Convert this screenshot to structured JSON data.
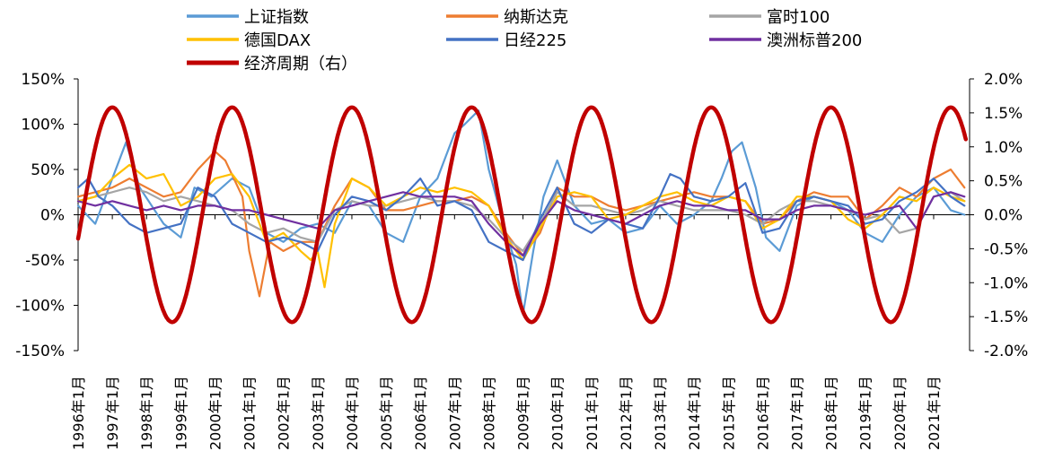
{
  "chart_data": {
    "type": "line",
    "title": "",
    "x_start": "1996-01",
    "x_end": "2021-12",
    "x_tick_labels": [
      "1996年1月",
      "1997年1月",
      "1998年1月",
      "1999年1月",
      "2000年1月",
      "2001年1月",
      "2002年1月",
      "2003年1月",
      "2004年1月",
      "2005年1月",
      "2006年1月",
      "2007年1月",
      "2008年1月",
      "2009年1月",
      "2010年1月",
      "2011年1月",
      "2012年1月",
      "2013年1月",
      "2014年1月",
      "2015年1月",
      "2016年1月",
      "2017年1月",
      "2018年1月",
      "2019年1月",
      "2020年1月",
      "2021年1月"
    ],
    "y_left": {
      "min": -150,
      "max": 150,
      "step": 50,
      "tick_labels": [
        "150%",
        "100%",
        "50%",
        "0%",
        "-50%",
        "-100%",
        "-150%"
      ]
    },
    "y_right": {
      "min": -2.0,
      "max": 2.0,
      "step": 0.5,
      "tick_labels": [
        "2.0%",
        "1.5%",
        "1.0%",
        "0.5%",
        "0.0%",
        "-0.5%",
        "-1.0%",
        "-1.5%",
        "-2.0%"
      ]
    },
    "legend_position": "top",
    "series": [
      {
        "name": "上证指数",
        "color": "#5B9BD5",
        "axis": "left",
        "x": [
          1996.0,
          1996.5,
          1997.0,
          1997.4,
          1997.8,
          1998.5,
          1999.0,
          1999.4,
          1999.9,
          2000.5,
          2001.0,
          2001.5,
          2002.0,
          2002.5,
          2003.0,
          2003.5,
          2004.0,
          2004.5,
          2005.0,
          2005.5,
          2006.0,
          2006.5,
          2007.0,
          2007.3,
          2007.7,
          2008.0,
          2008.5,
          2008.8,
          2009.0,
          2009.3,
          2009.6,
          2010.0,
          2010.5,
          2011.0,
          2011.5,
          2012.0,
          2012.5,
          2013.0,
          2013.5,
          2014.0,
          2014.5,
          2014.8,
          2015.1,
          2015.4,
          2015.8,
          2016.1,
          2016.5,
          2017.0,
          2017.5,
          2018.0,
          2018.5,
          2019.0,
          2019.5,
          2020.0,
          2020.5,
          2021.0,
          2021.5,
          2021.9
        ],
        "y": [
          10,
          -10,
          40,
          80,
          30,
          -10,
          -25,
          30,
          20,
          40,
          30,
          -20,
          -30,
          -15,
          -10,
          -20,
          15,
          10,
          -20,
          -30,
          20,
          40,
          90,
          100,
          115,
          50,
          -20,
          -55,
          -110,
          -40,
          20,
          60,
          10,
          -10,
          -5,
          -20,
          -15,
          10,
          -10,
          0,
          15,
          40,
          70,
          80,
          30,
          -25,
          -40,
          10,
          20,
          15,
          5,
          -20,
          -30,
          0,
          20,
          30,
          5,
          0
        ]
      },
      {
        "name": "纳斯达克",
        "color": "#ED7D31",
        "axis": "left",
        "x": [
          1996.0,
          1996.5,
          1997.0,
          1997.5,
          1998.0,
          1998.5,
          1999.0,
          1999.5,
          2000.0,
          2000.3,
          2000.8,
          2001.0,
          2001.3,
          2001.6,
          2002.0,
          2002.5,
          2003.0,
          2003.5,
          2004.0,
          2004.5,
          2005.0,
          2005.5,
          2006.0,
          2006.5,
          2007.0,
          2007.5,
          2008.0,
          2008.5,
          2009.0,
          2009.5,
          2010.0,
          2010.5,
          2011.0,
          2011.5,
          2012.0,
          2012.5,
          2013.0,
          2013.5,
          2014.0,
          2014.5,
          2015.0,
          2015.5,
          2016.0,
          2016.5,
          2017.0,
          2017.5,
          2018.0,
          2018.5,
          2019.0,
          2019.5,
          2020.0,
          2020.5,
          2021.0,
          2021.5,
          2021.9
        ],
        "y": [
          20,
          25,
          30,
          40,
          30,
          20,
          25,
          50,
          70,
          60,
          20,
          -40,
          -90,
          -30,
          -40,
          -30,
          -30,
          10,
          40,
          30,
          5,
          5,
          10,
          15,
          15,
          20,
          10,
          -20,
          -45,
          -20,
          30,
          20,
          20,
          10,
          5,
          10,
          15,
          20,
          25,
          20,
          20,
          15,
          -10,
          -5,
          15,
          25,
          20,
          20,
          -5,
          10,
          30,
          20,
          40,
          50,
          30
        ]
      },
      {
        "name": "富时100",
        "color": "#A5A5A5",
        "axis": "left",
        "x": [
          1996.0,
          1996.5,
          1997.0,
          1997.5,
          1998.0,
          1998.5,
          1999.0,
          1999.5,
          2000.0,
          2000.5,
          2001.0,
          2001.5,
          2002.0,
          2002.5,
          2003.0,
          2003.5,
          2004.0,
          2004.5,
          2005.0,
          2005.5,
          2006.0,
          2006.5,
          2007.0,
          2007.5,
          2008.0,
          2008.5,
          2009.0,
          2009.5,
          2010.0,
          2010.5,
          2011.0,
          2011.5,
          2012.0,
          2012.5,
          2013.0,
          2013.5,
          2014.0,
          2014.5,
          2015.0,
          2015.5,
          2016.0,
          2016.5,
          2017.0,
          2017.5,
          2018.0,
          2018.5,
          2019.0,
          2019.5,
          2020.0,
          2020.5,
          2021.0,
          2021.5,
          2021.9
        ],
        "y": [
          15,
          20,
          25,
          30,
          25,
          15,
          20,
          15,
          10,
          5,
          -10,
          -20,
          -15,
          -25,
          -30,
          5,
          15,
          10,
          10,
          15,
          20,
          15,
          15,
          10,
          -5,
          -25,
          -40,
          -10,
          25,
          10,
          10,
          5,
          0,
          5,
          15,
          10,
          5,
          5,
          5,
          0,
          -10,
          5,
          15,
          15,
          10,
          5,
          -5,
          0,
          -20,
          -15,
          20,
          25,
          15
        ]
      },
      {
        "name": "德国DAX",
        "color": "#FFC000",
        "axis": "left",
        "x": [
          1996.0,
          1996.5,
          1997.0,
          1997.5,
          1998.0,
          1998.5,
          1999.0,
          1999.5,
          2000.0,
          2000.5,
          2001.0,
          2001.5,
          2002.0,
          2002.5,
          2002.8,
          2003.0,
          2003.2,
          2003.5,
          2004.0,
          2004.5,
          2005.0,
          2005.5,
          2006.0,
          2006.5,
          2007.0,
          2007.5,
          2008.0,
          2008.5,
          2009.0,
          2009.5,
          2010.0,
          2010.5,
          2011.0,
          2011.5,
          2012.0,
          2012.5,
          2013.0,
          2013.5,
          2014.0,
          2014.5,
          2015.0,
          2015.5,
          2016.0,
          2016.5,
          2017.0,
          2017.5,
          2018.0,
          2018.5,
          2019.0,
          2019.5,
          2020.0,
          2020.5,
          2021.0,
          2021.5,
          2021.9
        ],
        "y": [
          15,
          20,
          40,
          55,
          40,
          45,
          10,
          20,
          40,
          45,
          20,
          -30,
          -20,
          -40,
          -50,
          -40,
          -80,
          -10,
          40,
          30,
          10,
          20,
          30,
          25,
          30,
          25,
          10,
          -25,
          -50,
          -15,
          20,
          25,
          20,
          -5,
          0,
          10,
          20,
          25,
          15,
          10,
          20,
          15,
          -15,
          -5,
          20,
          20,
          15,
          -5,
          -15,
          0,
          20,
          15,
          30,
          20,
          15
        ]
      },
      {
        "name": "日经225",
        "color": "#4472C4",
        "axis": "left",
        "x": [
          1996.0,
          1996.3,
          1996.6,
          1997.0,
          1997.5,
          1998.0,
          1998.5,
          1999.0,
          1999.5,
          2000.0,
          2000.5,
          2001.0,
          2001.5,
          2002.0,
          2002.5,
          2003.0,
          2003.5,
          2004.0,
          2004.5,
          2005.0,
          2005.5,
          2006.0,
          2006.5,
          2007.0,
          2007.5,
          2008.0,
          2008.5,
          2009.0,
          2009.5,
          2010.0,
          2010.5,
          2011.0,
          2011.5,
          2012.0,
          2012.5,
          2013.0,
          2013.3,
          2013.6,
          2014.0,
          2014.5,
          2015.0,
          2015.5,
          2016.0,
          2016.5,
          2017.0,
          2017.5,
          2018.0,
          2018.5,
          2019.0,
          2019.5,
          2020.0,
          2020.5,
          2021.0,
          2021.5,
          2021.9
        ],
        "y": [
          30,
          40,
          20,
          10,
          -10,
          -20,
          -15,
          -10,
          30,
          20,
          -10,
          -20,
          -30,
          -25,
          -30,
          -40,
          0,
          20,
          15,
          5,
          20,
          40,
          10,
          15,
          5,
          -30,
          -40,
          -50,
          -5,
          30,
          -10,
          -20,
          -5,
          -10,
          -15,
          20,
          45,
          40,
          20,
          15,
          20,
          35,
          -20,
          -15,
          15,
          20,
          15,
          10,
          -10,
          -5,
          15,
          25,
          40,
          20,
          10
        ]
      },
      {
        "name": "澳洲标普200",
        "color": "#7030A0",
        "axis": "left",
        "x": [
          1996.0,
          1996.5,
          1997.0,
          1997.5,
          1998.0,
          1998.5,
          1999.0,
          1999.5,
          2000.0,
          2000.5,
          2001.0,
          2001.5,
          2002.0,
          2002.5,
          2003.0,
          2003.5,
          2004.0,
          2004.5,
          2005.0,
          2005.5,
          2006.0,
          2006.5,
          2007.0,
          2007.5,
          2008.0,
          2008.5,
          2009.0,
          2009.5,
          2010.0,
          2010.5,
          2011.0,
          2011.5,
          2012.0,
          2012.5,
          2013.0,
          2013.5,
          2014.0,
          2014.5,
          2015.0,
          2015.5,
          2016.0,
          2016.5,
          2017.0,
          2017.5,
          2018.0,
          2018.5,
          2019.0,
          2019.5,
          2020.0,
          2020.5,
          2021.0,
          2021.5,
          2021.9
        ],
        "y": [
          15,
          10,
          15,
          10,
          5,
          10,
          5,
          10,
          10,
          5,
          5,
          0,
          -5,
          -10,
          -15,
          5,
          10,
          15,
          20,
          25,
          20,
          20,
          20,
          15,
          -10,
          -30,
          -45,
          -10,
          15,
          5,
          0,
          -5,
          -10,
          0,
          10,
          15,
          10,
          10,
          5,
          5,
          -5,
          -5,
          5,
          10,
          10,
          5,
          0,
          5,
          10,
          -15,
          20,
          25,
          20
        ]
      },
      {
        "name": "经济周期（右）",
        "color": "#C00000",
        "axis": "right",
        "kind": "sine",
        "amplitude": 1.58,
        "period_years": 3.5,
        "peak_at": 1997.0,
        "x_end": 2021.95
      }
    ]
  }
}
